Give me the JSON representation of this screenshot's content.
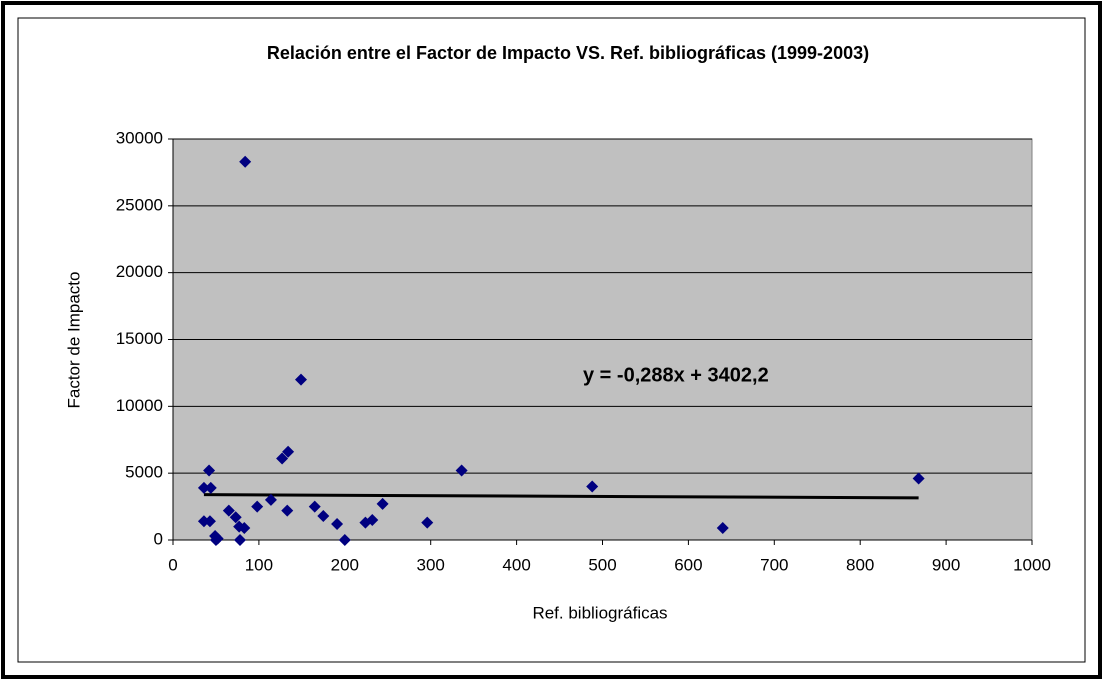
{
  "chart_data": {
    "type": "scatter",
    "title": "Relación entre el Factor de Impacto VS. Ref. bibliográficas (1999-2003)",
    "xlabel": "Ref. bibliográficas",
    "ylabel": "Factor de Impacto",
    "xlim": [
      0,
      1000
    ],
    "ylim": [
      0,
      30000
    ],
    "xticks": [
      0,
      100,
      200,
      300,
      400,
      500,
      600,
      700,
      800,
      900,
      1000
    ],
    "yticks": [
      0,
      5000,
      10000,
      15000,
      20000,
      25000,
      30000
    ],
    "grid": true,
    "color": "#000080",
    "x": [
      84,
      149,
      42,
      44,
      36,
      36,
      43,
      49,
      52,
      50,
      65,
      73,
      77,
      78,
      83,
      98,
      114,
      127,
      134,
      133,
      165,
      175,
      191,
      200,
      224,
      232,
      244,
      296,
      336,
      488,
      640,
      868
    ],
    "values": [
      28300,
      12000,
      5200,
      3900,
      3900,
      1400,
      1400,
      300,
      100,
      0,
      2200,
      1700,
      1000,
      0,
      900,
      2500,
      3000,
      6100,
      6600,
      2200,
      2500,
      1800,
      1200,
      0,
      1300,
      1500,
      2700,
      1300,
      5200,
      4000,
      900,
      4600
    ],
    "trendline": {
      "slope": -0.288,
      "intercept": 3402.2,
      "label": "y = -0,288x + 3402,2"
    }
  }
}
